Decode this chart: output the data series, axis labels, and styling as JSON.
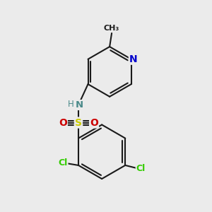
{
  "background_color": "#ebebeb",
  "bond_color": "#1a1a1a",
  "bond_width": 1.5,
  "atom_colors": {
    "N_pyridine": "#0000cc",
    "N_amine": "#4a8a8a",
    "S": "#cccc00",
    "O": "#cc0000",
    "Cl": "#33cc00",
    "C": "#1a1a1a"
  },
  "xlim": [
    0,
    10
  ],
  "ylim": [
    0,
    10
  ]
}
